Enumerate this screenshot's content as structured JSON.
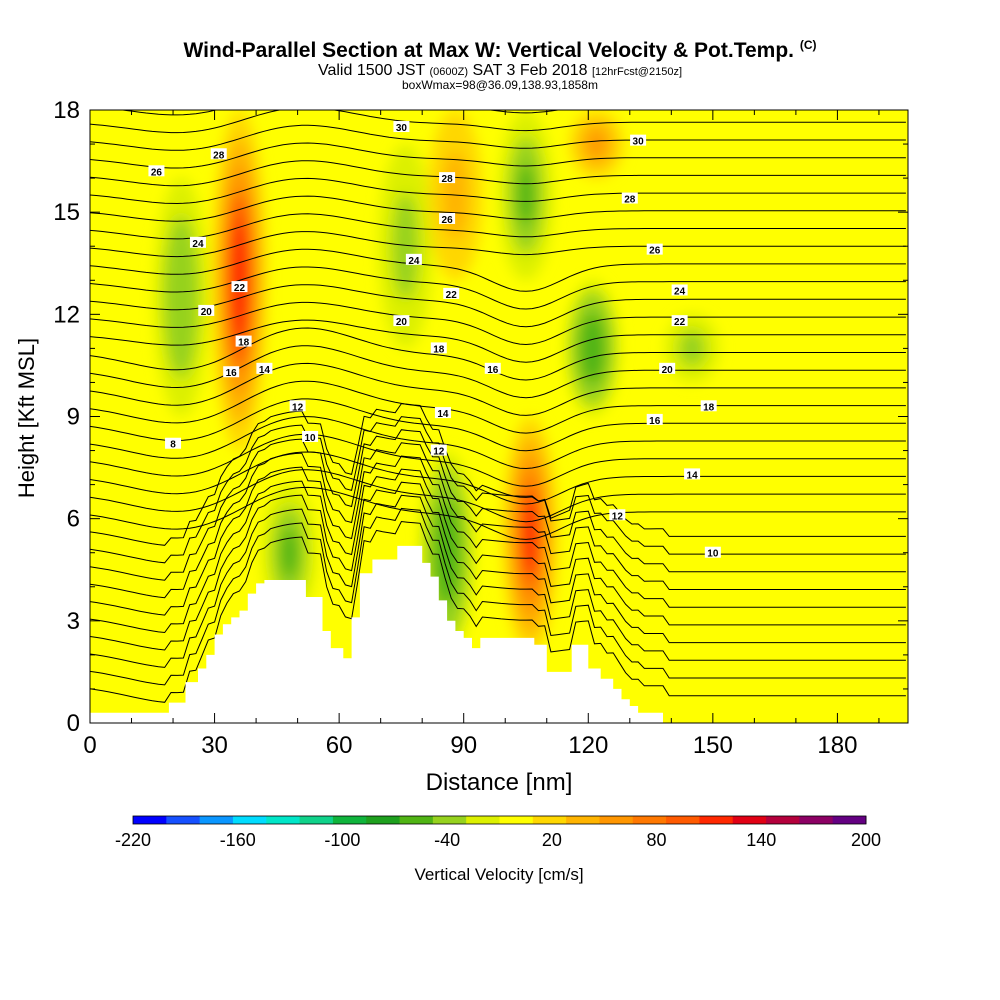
{
  "title": {
    "main": "Wind-Parallel Section at Max W: Vertical Velocity & Pot.Temp.",
    "main_unit": "(C)",
    "valid_prefix": "Valid 1500 JST",
    "valid_utc": "(0600Z)",
    "valid_date": "SAT 3 Feb 2018",
    "forecast": "[12hrFcst@2150z]",
    "box_info": "boxWmax=98@36.09,138.93,1858m"
  },
  "chart_data": {
    "type": "heatmap",
    "xlabel": "Distance [nm]",
    "ylabel": "Height [Kft MSL]",
    "xlim": [
      0,
      197
    ],
    "ylim": [
      0,
      18
    ],
    "xticks": [
      0,
      30,
      60,
      90,
      120,
      150,
      180
    ],
    "yticks": [
      0,
      3,
      6,
      9,
      12,
      15,
      18
    ],
    "shading": {
      "variable": "Vertical Velocity",
      "label": "Vertical Velocity [cm/s]",
      "levels": [
        -220,
        -200,
        -180,
        -160,
        -140,
        -120,
        -100,
        -80,
        -60,
        -40,
        -20,
        0,
        20,
        40,
        60,
        80,
        100,
        120,
        140,
        160,
        180,
        200
      ],
      "tick_labels": [
        "-220",
        "-160",
        "-100",
        "-40",
        "20",
        "80",
        "140",
        "200"
      ],
      "tick_values": [
        -220,
        -160,
        -100,
        -40,
        20,
        80,
        140,
        200
      ],
      "colors": [
        "#0000ff",
        "#1650ff",
        "#0a96ff",
        "#00dcff",
        "#00e6c8",
        "#10d28a",
        "#10b43c",
        "#1ea01e",
        "#50b414",
        "#96d21e",
        "#dcf000",
        "#ffff00",
        "#ffd700",
        "#ffb400",
        "#ff9600",
        "#ff7800",
        "#ff5a00",
        "#ff2800",
        "#e10014",
        "#b4003c",
        "#8c0064",
        "#640082"
      ],
      "features": [
        {
          "center_x": 36,
          "from_y": 8,
          "to_y": 18,
          "peak": 130
        },
        {
          "center_x": 22,
          "from_y": 9,
          "to_y": 16,
          "peak": -40
        },
        {
          "center_x": 48,
          "from_y": 3,
          "to_y": 7,
          "peak": -45
        },
        {
          "center_x": 86,
          "from_y": 2,
          "to_y": 8,
          "peak": -60
        },
        {
          "center_x": 106,
          "from_y": 2,
          "to_y": 9,
          "peak": 120
        },
        {
          "center_x": 105,
          "from_y": 13,
          "to_y": 18,
          "peak": -50
        },
        {
          "center_x": 121,
          "from_y": 9,
          "to_y": 13,
          "peak": -55
        },
        {
          "center_x": 76,
          "from_y": 11,
          "to_y": 17,
          "peak": -30
        },
        {
          "center_x": 88,
          "from_y": 13,
          "to_y": 18,
          "peak": 50
        },
        {
          "center_x": 122,
          "from_y": 16,
          "to_y": 18,
          "peak": 70
        },
        {
          "center_x": 145,
          "from_y": 10,
          "to_y": 12,
          "peak": -30
        }
      ]
    },
    "contours": {
      "variable": "Potential Temperature",
      "unit": "C",
      "labels": [
        {
          "text": "8",
          "x": 20,
          "y": 8.2
        },
        {
          "text": "10",
          "x": 53,
          "y": 8.4
        },
        {
          "text": "12",
          "x": 50,
          "y": 9.3
        },
        {
          "text": "14",
          "x": 42,
          "y": 10.4
        },
        {
          "text": "16",
          "x": 34,
          "y": 10.3
        },
        {
          "text": "18",
          "x": 37,
          "y": 11.2
        },
        {
          "text": "20",
          "x": 28,
          "y": 12.1
        },
        {
          "text": "22",
          "x": 36,
          "y": 12.8
        },
        {
          "text": "24",
          "x": 26,
          "y": 14.1
        },
        {
          "text": "26",
          "x": 16,
          "y": 16.2
        },
        {
          "text": "28",
          "x": 31,
          "y": 16.7
        },
        {
          "text": "30",
          "x": 75,
          "y": 17.5
        },
        {
          "text": "28",
          "x": 86,
          "y": 16.0
        },
        {
          "text": "26",
          "x": 86,
          "y": 14.8
        },
        {
          "text": "24",
          "x": 78,
          "y": 13.6
        },
        {
          "text": "22",
          "x": 87,
          "y": 12.6
        },
        {
          "text": "20",
          "x": 75,
          "y": 11.8
        },
        {
          "text": "18",
          "x": 84,
          "y": 11.0
        },
        {
          "text": "16",
          "x": 97,
          "y": 10.4
        },
        {
          "text": "14",
          "x": 85,
          "y": 9.1
        },
        {
          "text": "12",
          "x": 84,
          "y": 8.0
        },
        {
          "text": "30",
          "x": 132,
          "y": 17.1
        },
        {
          "text": "28",
          "x": 130,
          "y": 15.4
        },
        {
          "text": "26",
          "x": 136,
          "y": 13.9
        },
        {
          "text": "24",
          "x": 142,
          "y": 12.7
        },
        {
          "text": "22",
          "x": 142,
          "y": 11.8
        },
        {
          "text": "20",
          "x": 139,
          "y": 10.4
        },
        {
          "text": "18",
          "x": 149,
          "y": 9.3
        },
        {
          "text": "16",
          "x": 136,
          "y": 8.9
        },
        {
          "text": "14",
          "x": 145,
          "y": 7.3
        },
        {
          "text": "12",
          "x": 127,
          "y": 6.1
        },
        {
          "text": "10",
          "x": 150,
          "y": 5.0
        }
      ]
    },
    "terrain": {
      "x": [
        0,
        19,
        19,
        23,
        23,
        26,
        26,
        28,
        28,
        30,
        30,
        32,
        32,
        34,
        34,
        36,
        36,
        38,
        38,
        40,
        40,
        42,
        42,
        52,
        52,
        56,
        56,
        58,
        58,
        61,
        61,
        63,
        63,
        65,
        65,
        68,
        68,
        74,
        74,
        80,
        80,
        82,
        82,
        84,
        84,
        86,
        86,
        88,
        88,
        90,
        90,
        92,
        92,
        94,
        94,
        96,
        96,
        98,
        98,
        107,
        107,
        110,
        110,
        116,
        116,
        120,
        120,
        123,
        123,
        126,
        126,
        128,
        128,
        130,
        130,
        132,
        132,
        134,
        134,
        138,
        138,
        197
      ],
      "height": [
        0.3,
        0.3,
        0.6,
        0.6,
        1.2,
        1.2,
        1.6,
        1.6,
        2.0,
        2.0,
        2.6,
        2.6,
        2.9,
        2.9,
        3.1,
        3.1,
        3.3,
        3.3,
        3.8,
        3.8,
        4.1,
        4.1,
        4.2,
        4.2,
        3.7,
        3.7,
        2.7,
        2.7,
        2.2,
        2.2,
        1.9,
        1.9,
        3.1,
        3.1,
        4.4,
        4.4,
        4.8,
        4.8,
        5.2,
        5.2,
        4.7,
        4.7,
        4.3,
        4.3,
        3.6,
        3.6,
        3.0,
        3.0,
        2.7,
        2.7,
        2.5,
        2.5,
        2.2,
        2.2,
        2.5,
        2.5,
        2.5,
        2.5,
        2.5,
        2.5,
        2.3,
        2.3,
        1.5,
        1.5,
        2.3,
        2.3,
        1.6,
        1.6,
        1.3,
        1.3,
        1.0,
        1.0,
        0.7,
        0.7,
        0.5,
        0.5,
        0.3,
        0.3,
        0.3,
        0.3,
        0.0,
        0.0
      ]
    }
  }
}
